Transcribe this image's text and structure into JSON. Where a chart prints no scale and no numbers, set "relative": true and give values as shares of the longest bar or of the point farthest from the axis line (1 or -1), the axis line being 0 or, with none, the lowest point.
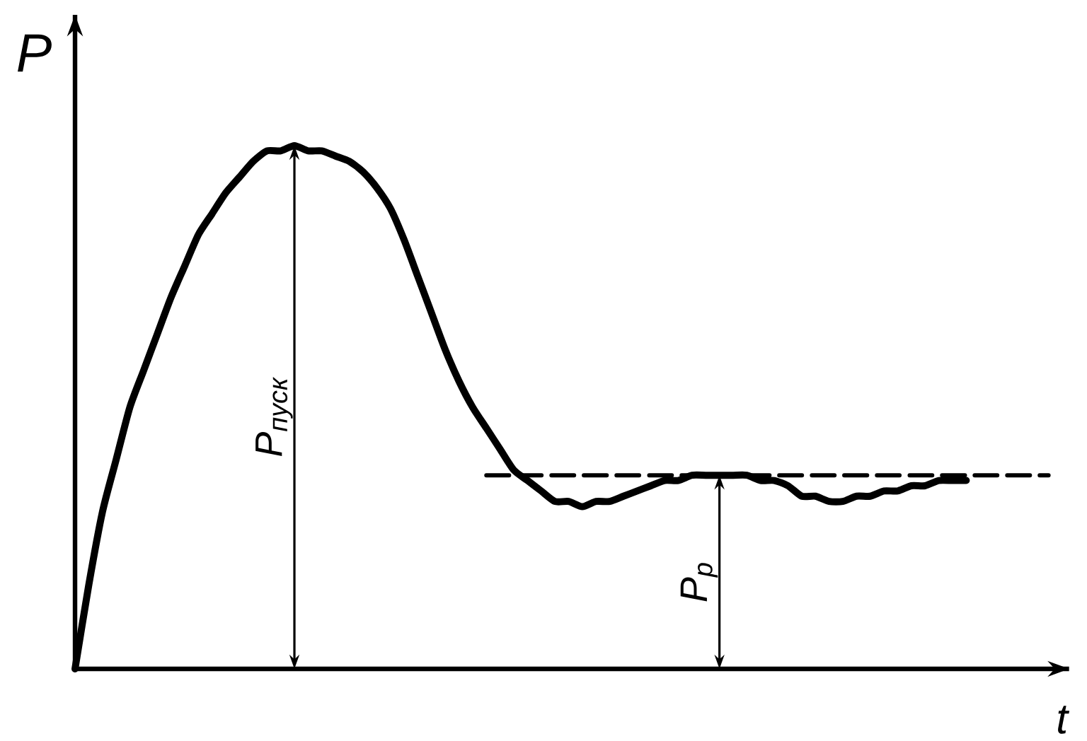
{
  "chart_data": {
    "type": "line",
    "relative": true,
    "xlabel": "t",
    "ylabel": "P",
    "line_style": "solid",
    "categories": [
      null,
      null,
      null,
      null,
      null,
      null,
      null,
      null,
      null,
      null,
      null,
      null,
      null,
      null,
      null,
      null,
      null,
      null,
      null,
      null,
      null,
      null,
      null,
      null,
      null,
      null,
      null,
      null,
      null,
      null,
      null,
      null,
      null,
      null,
      null,
      null,
      null,
      null,
      null,
      null,
      null,
      null,
      null,
      null,
      null,
      null,
      null,
      null,
      null,
      null,
      null,
      null,
      null,
      null,
      null,
      null,
      null,
      null,
      null,
      null,
      null,
      null,
      null,
      null,
      null,
      null,
      null,
      null,
      null,
      null,
      null,
      null
    ],
    "series": [
      {
        "color": "#000000",
        "values": [
          0,
          0.16,
          0.3,
          0.4,
          0.5,
          0.57,
          0.64,
          0.71,
          0.77,
          0.83,
          0.87,
          0.91,
          0.94,
          0.97,
          0.99,
          0.99,
          1.0,
          0.99,
          0.99,
          0.98,
          0.97,
          0.95,
          0.92,
          0.88,
          0.82,
          0.75,
          0.68,
          0.61,
          0.55,
          0.5,
          0.46,
          0.42,
          0.38,
          0.36,
          0.34,
          0.32,
          0.32,
          0.31,
          0.32,
          0.32,
          0.33,
          0.34,
          0.35,
          0.36,
          0.36,
          0.37,
          0.37,
          0.37,
          0.37,
          0.37,
          0.36,
          0.36,
          0.35,
          0.33,
          0.33,
          0.32,
          0.32,
          0.33,
          0.33,
          0.34,
          0.34,
          0.35,
          0.35,
          0.36,
          0.36,
          0.36,
          null,
          null,
          null,
          null,
          null,
          null
        ]
      },
      {
        "color": "#000000",
        "type": "line",
        "line_style": "dashed",
        "values": [
          null,
          null,
          null,
          null,
          null,
          null,
          null,
          null,
          null,
          null,
          null,
          null,
          null,
          null,
          null,
          null,
          null,
          null,
          null,
          null,
          null,
          null,
          null,
          null,
          null,
          null,
          null,
          null,
          null,
          null,
          0.37,
          0.37,
          0.37,
          0.37,
          0.37,
          0.37,
          0.37,
          0.37,
          0.37,
          0.37,
          0.37,
          0.37,
          0.37,
          0.37,
          0.37,
          0.37,
          0.37,
          0.37,
          0.37,
          0.37,
          0.37,
          0.37,
          0.37,
          0.37,
          0.37,
          0.37,
          0.37,
          0.37,
          0.37,
          0.37,
          0.37,
          0.37,
          0.37,
          0.37,
          0.37,
          0.37,
          0.37,
          0.37,
          0.37,
          0.37,
          0.37,
          0.37
        ]
      }
    ],
    "annotations": [
      "P$_{пуск}$",
      {
        "text": "P$_{р}$",
        "y": 0.37
      }
    ]
  }
}
